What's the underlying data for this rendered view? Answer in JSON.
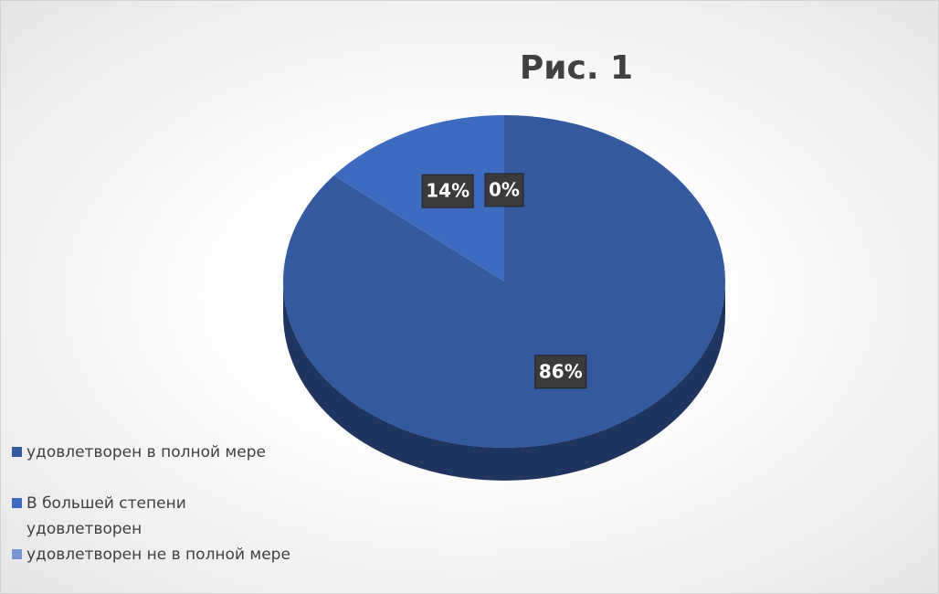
{
  "chart_data": {
    "type": "pie",
    "title": "Рис. 1",
    "categories": [
      "удовлетворен в полной мере",
      "В большей степени удовлетворен",
      "удовлетворен не в полной мере"
    ],
    "values": [
      86,
      14,
      0
    ],
    "value_labels": [
      "86%",
      "14%",
      "0%"
    ],
    "colors": [
      "#34599e",
      "#3e6bbf",
      "#7a95d6"
    ],
    "legend": "bottom-left"
  }
}
